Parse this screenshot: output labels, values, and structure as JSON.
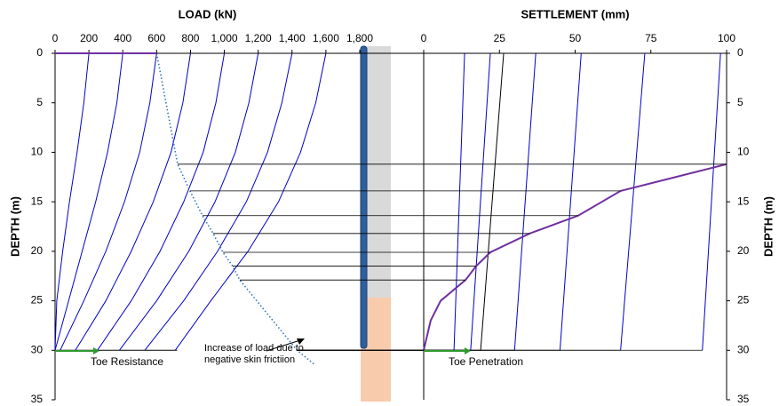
{
  "chart_data": [
    {
      "type": "line",
      "title": "LOAD (kN)",
      "y_label": "DEPTH (m)",
      "y_axis_side": "left",
      "y_reversed": true,
      "xlim": [
        0,
        1800
      ],
      "xticks": [
        0,
        200,
        400,
        600,
        800,
        {
          "value": 1000,
          "label": "1,000"
        },
        {
          "value": 1200,
          "label": "1,200"
        },
        {
          "value": 1400,
          "label": "1,400"
        },
        {
          "value": 1600,
          "label": "1,600"
        },
        {
          "value": 1800,
          "label": "1,800"
        }
      ],
      "ylim": [
        0,
        35
      ],
      "yticks": [
        0,
        5,
        10,
        15,
        20,
        25,
        30,
        35
      ],
      "series": [
        {
          "color": "#0000cc",
          "x": [
            200,
            170,
            130,
            85,
            45,
            10,
            0
          ],
          "y": [
            0,
            5,
            10,
            15,
            20,
            25,
            30
          ]
        },
        {
          "color": "#0000cc",
          "x": [
            400,
            365,
            310,
            240,
            160,
            80,
            0
          ],
          "y": [
            0,
            5,
            10,
            15,
            20,
            25,
            30
          ]
        },
        {
          "color": "#0000cc",
          "x": [
            600,
            560,
            500,
            410,
            300,
            170,
            30
          ],
          "y": [
            0,
            5,
            10,
            15,
            20,
            25,
            30
          ]
        },
        {
          "color": "#0000cc",
          "x": [
            800,
            755,
            685,
            580,
            450,
            300,
            120
          ],
          "y": [
            0,
            5,
            10,
            15,
            20,
            25,
            30
          ]
        },
        {
          "color": "#0000cc",
          "x": [
            1000,
            950,
            875,
            760,
            620,
            450,
            250
          ],
          "y": [
            0,
            5,
            10,
            15,
            20,
            25,
            30
          ]
        },
        {
          "color": "#0000cc",
          "x": [
            1200,
            1145,
            1065,
            945,
            790,
            600,
            380
          ],
          "y": [
            0,
            5,
            10,
            15,
            20,
            25,
            30
          ]
        },
        {
          "color": "#0000cc",
          "x": [
            1400,
            1340,
            1255,
            1130,
            960,
            760,
            530
          ],
          "y": [
            0,
            5,
            10,
            15,
            20,
            25,
            30
          ]
        },
        {
          "color": "#0000cc",
          "x": [
            1600,
            1540,
            1450,
            1320,
            1140,
            920,
            710
          ],
          "y": [
            0,
            5,
            10,
            15,
            20,
            25,
            30
          ]
        },
        {
          "color": "#7030a0",
          "x": [
            0,
            600
          ],
          "y": [
            0,
            0
          ]
        },
        {
          "color": "#000000",
          "x": [
            0,
            720
          ],
          "y": [
            30,
            30
          ]
        },
        {
          "color": "#2e75b6",
          "dashed": true,
          "x": [
            600,
            724,
            797,
            871,
            934,
            992,
            1049,
            1091,
            1430,
            1537
          ],
          "y": [
            0,
            11.2,
            13.9,
            16.4,
            18.2,
            20.1,
            21.5,
            22.9,
            30,
            31.5
          ]
        }
      ],
      "annotations": [
        "Toe Resistance",
        "Increase of load due to negative skin frictiion"
      ]
    },
    {
      "type": "line",
      "title": "SETTLEMENT (mm)",
      "y_label": "DEPTH (m)",
      "y_axis_side": "right",
      "y_reversed": true,
      "xlim": [
        0,
        100
      ],
      "xticks": [
        0,
        25,
        50,
        75,
        100
      ],
      "ylim": [
        0,
        35
      ],
      "yticks": [
        0,
        5,
        10,
        15,
        20,
        25,
        30,
        35
      ],
      "series": [
        {
          "color": "#0000cc",
          "x": [
            13.5,
            10
          ],
          "y": [
            0,
            30
          ]
        },
        {
          "color": "#0000cc",
          "x": [
            22,
            15.5
          ],
          "y": [
            0,
            30
          ]
        },
        {
          "color": "#0000cc",
          "x": [
            37,
            30
          ],
          "y": [
            0,
            30
          ]
        },
        {
          "color": "#0000cc",
          "x": [
            52,
            45
          ],
          "y": [
            0,
            30
          ]
        },
        {
          "color": "#0000cc",
          "x": [
            73,
            65
          ],
          "y": [
            0,
            30
          ]
        },
        {
          "color": "#0000cc",
          "x": [
            98,
            92
          ],
          "y": [
            0,
            30
          ]
        },
        {
          "color": "#000000",
          "x": [
            26.4,
            18.8
          ],
          "y": [
            0,
            30
          ]
        },
        {
          "color": "#7030a0",
          "x": [
            100,
            65,
            51,
            35,
            22,
            17.3,
            13.8,
            5.6,
            2.3,
            0
          ],
          "y": [
            11.2,
            13.9,
            16.4,
            18.2,
            20.1,
            21.5,
            22.9,
            25,
            27,
            30
          ]
        }
      ],
      "annotations": [
        "Toe Penetration"
      ]
    }
  ]
}
